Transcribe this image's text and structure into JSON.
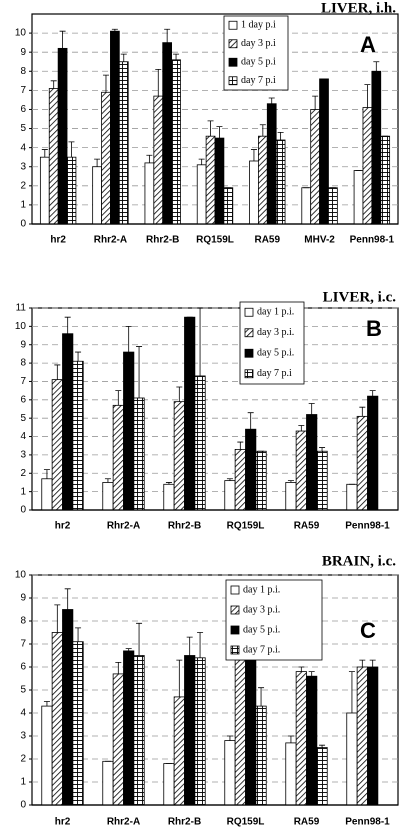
{
  "chart_data": [
    {
      "type": "bar",
      "title": "LIVER, i.h.",
      "annotation": "A",
      "categories": [
        "hr2",
        "Rhr2-A",
        "Rhr2-B",
        "RQ159L",
        "RA59",
        "MHV-2",
        "Penn98-1"
      ],
      "series": [
        {
          "name": "1 day p.i",
          "color": "#ffffff",
          "pattern": "none",
          "values": [
            3.5,
            3.0,
            3.2,
            3.1,
            3.3,
            1.9,
            2.8
          ],
          "errors": [
            0.4,
            0.4,
            0.4,
            0.3,
            0.6,
            0,
            0
          ]
        },
        {
          "name": "day 3 p.i",
          "color": "#ffffff",
          "pattern": "hatch",
          "values": [
            7.1,
            6.9,
            6.7,
            4.6,
            4.6,
            6.0,
            6.1
          ],
          "errors": [
            0.4,
            0.9,
            1.4,
            0.8,
            0.6,
            0.7,
            1.2
          ]
        },
        {
          "name": "day 5 p.i",
          "color": "#000000",
          "pattern": "none",
          "values": [
            9.2,
            10.1,
            9.5,
            4.5,
            6.3,
            7.6,
            8.0
          ],
          "errors": [
            0.9,
            0.1,
            0.7,
            0.6,
            0.3,
            0,
            0.5
          ]
        },
        {
          "name": "day 7 p.i",
          "color": "#ffffff",
          "pattern": "grid",
          "values": [
            3.5,
            8.5,
            8.6,
            1.9,
            4.4,
            1.9,
            4.6
          ],
          "errors": [
            0.8,
            0.4,
            0.3,
            0,
            0.4,
            0,
            0
          ]
        }
      ],
      "ylim": [
        0,
        11
      ],
      "yticks": [
        0,
        1,
        2,
        3,
        4,
        5,
        6,
        7,
        8,
        9,
        10
      ],
      "grid": true
    },
    {
      "type": "bar",
      "title": "LIVER, i.c.",
      "annotation": "B",
      "categories": [
        "hr2",
        "Rhr2-A",
        "Rhr2-B",
        "RQ159L",
        "RA59",
        "Penn98-1"
      ],
      "series": [
        {
          "name": "day 1 p.i.",
          "color": "#ffffff",
          "pattern": "none",
          "values": [
            1.7,
            1.5,
            1.4,
            1.6,
            1.5,
            1.4
          ],
          "errors": [
            0.5,
            0.2,
            0.1,
            0.1,
            0.1,
            0
          ]
        },
        {
          "name": "day 3 p.i.",
          "color": "#ffffff",
          "pattern": "hatch",
          "values": [
            7.1,
            5.7,
            5.9,
            3.3,
            4.3,
            5.1
          ],
          "errors": [
            0.8,
            0.8,
            0.8,
            0.4,
            0.3,
            0.5
          ]
        },
        {
          "name": "day 5 p.i.",
          "color": "#000000",
          "pattern": "none",
          "values": [
            9.6,
            8.6,
            10.5,
            4.4,
            5.2,
            6.2
          ],
          "errors": [
            0.9,
            1.4,
            0,
            0.9,
            0.6,
            0.3
          ]
        },
        {
          "name": "day 7 p.i",
          "color": "#ffffff",
          "pattern": "grid",
          "values": [
            8.1,
            6.1,
            7.3,
            3.2,
            3.2,
            null
          ],
          "errors": [
            0.5,
            2.8,
            3.7,
            0,
            0.2,
            null
          ]
        }
      ],
      "ylim": [
        0,
        11
      ],
      "yticks": [
        0,
        1,
        2,
        3,
        4,
        5,
        6,
        7,
        8,
        9,
        10,
        11
      ],
      "grid": true
    },
    {
      "type": "bar",
      "title": "BRAIN, i.c.",
      "annotation": "C",
      "categories": [
        "hr2",
        "Rhr2-A",
        "Rhr2-B",
        "RQ159L",
        "RA59",
        "Penn98-1"
      ],
      "series": [
        {
          "name": "day 1 p.i.",
          "color": "#ffffff",
          "pattern": "none",
          "values": [
            4.3,
            1.9,
            1.8,
            2.8,
            2.7,
            4.0
          ],
          "errors": [
            0.2,
            0,
            0,
            0.2,
            0.3,
            1.8
          ]
        },
        {
          "name": "day 3 p.i.",
          "color": "#ffffff",
          "pattern": "hatch",
          "values": [
            7.5,
            5.7,
            4.7,
            6.3,
            5.8,
            6.0
          ],
          "errors": [
            1.2,
            0.5,
            1.6,
            0.3,
            0.2,
            0.3
          ]
        },
        {
          "name": "day 5 p.i.",
          "color": "#000000",
          "pattern": "none",
          "values": [
            8.5,
            6.7,
            6.5,
            6.3,
            5.6,
            6.0
          ],
          "errors": [
            0.9,
            0.1,
            0.8,
            0.3,
            0.2,
            0.3
          ]
        },
        {
          "name": "day 7 p.i.",
          "color": "#ffffff",
          "pattern": "grid",
          "values": [
            7.1,
            6.5,
            6.4,
            4.3,
            2.5,
            null
          ],
          "errors": [
            0.6,
            1.4,
            1.1,
            0.8,
            0.1,
            null
          ]
        }
      ],
      "ylim": [
        0,
        10
      ],
      "yticks": [
        0,
        1,
        2,
        3,
        4,
        5,
        6,
        7,
        8,
        9,
        10
      ],
      "grid": true
    }
  ]
}
